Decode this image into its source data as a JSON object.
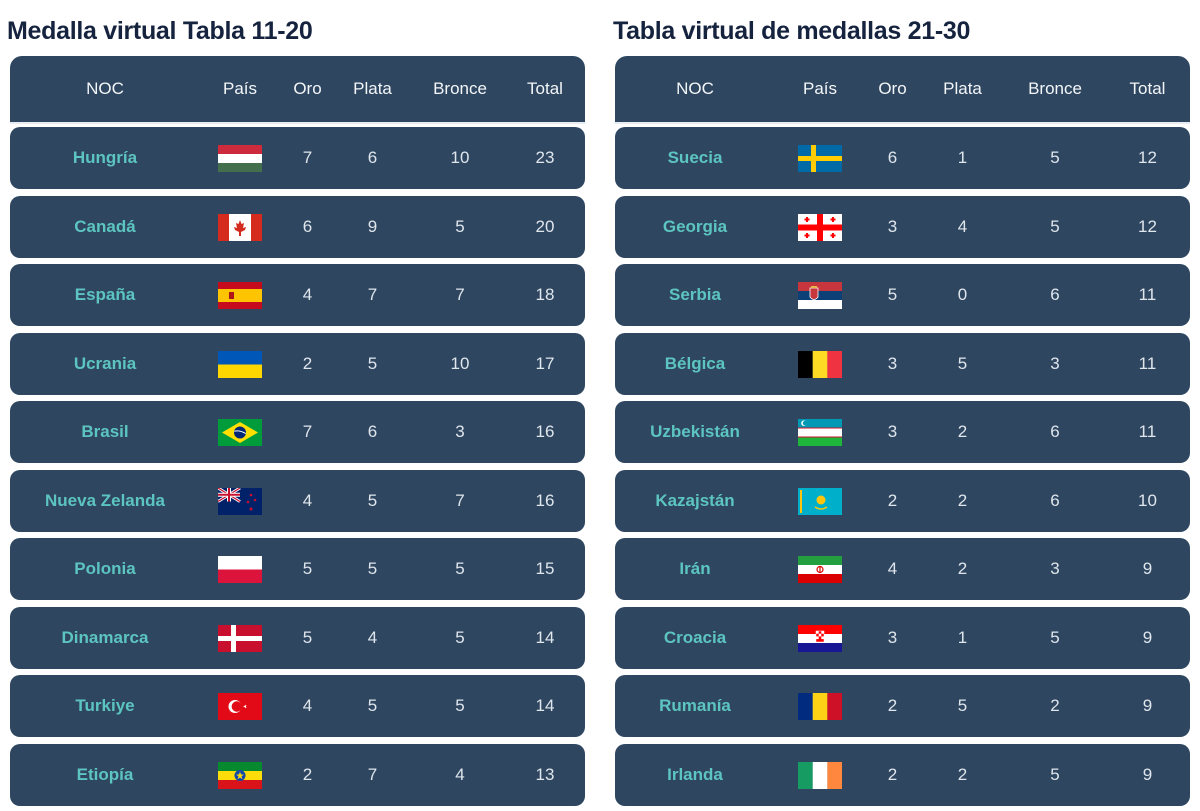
{
  "tables": [
    {
      "title": "Medalla virtual Tabla 11-20",
      "headers": [
        "NOC",
        "País",
        "Oro",
        "Plata",
        "Bronce",
        "Total"
      ],
      "rows": [
        {
          "country": "Hungría",
          "flag": "hungary-flag",
          "gold": "7",
          "silver": "6",
          "bronze": "10",
          "total": "23"
        },
        {
          "country": "Canadá",
          "flag": "canada-flag",
          "gold": "6",
          "silver": "9",
          "bronze": "5",
          "total": "20"
        },
        {
          "country": "España",
          "flag": "spain-flag",
          "gold": "4",
          "silver": "7",
          "bronze": "7",
          "total": "18"
        },
        {
          "country": "Ucrania",
          "flag": "ukraine-flag",
          "gold": "2",
          "silver": "5",
          "bronze": "10",
          "total": "17"
        },
        {
          "country": "Brasil",
          "flag": "brazil-flag",
          "gold": "7",
          "silver": "6",
          "bronze": "3",
          "total": "16"
        },
        {
          "country": "Nueva Zelanda",
          "flag": "new-zealand-flag",
          "gold": "4",
          "silver": "5",
          "bronze": "7",
          "total": "16"
        },
        {
          "country": "Polonia",
          "flag": "poland-flag",
          "gold": "5",
          "silver": "5",
          "bronze": "5",
          "total": "15"
        },
        {
          "country": "Dinamarca",
          "flag": "denmark-flag",
          "gold": "5",
          "silver": "4",
          "bronze": "5",
          "total": "14"
        },
        {
          "country": "Turkiye",
          "flag": "turkey-flag",
          "gold": "4",
          "silver": "5",
          "bronze": "5",
          "total": "14"
        },
        {
          "country": "Etiopía",
          "flag": "ethiopia-flag",
          "gold": "2",
          "silver": "7",
          "bronze": "4",
          "total": "13"
        }
      ]
    },
    {
      "title": "Tabla virtual de medallas 21-30",
      "headers": [
        "NOC",
        "País",
        "Oro",
        "Plata",
        "Bronce",
        "Total"
      ],
      "rows": [
        {
          "country": "Suecia",
          "flag": "sweden-flag",
          "gold": "6",
          "silver": "1",
          "bronze": "5",
          "total": "12"
        },
        {
          "country": "Georgia",
          "flag": "georgia-flag",
          "gold": "3",
          "silver": "4",
          "bronze": "5",
          "total": "12"
        },
        {
          "country": "Serbia",
          "flag": "serbia-flag",
          "gold": "5",
          "silver": "0",
          "bronze": "6",
          "total": "11"
        },
        {
          "country": "Bélgica",
          "flag": "belgium-flag",
          "gold": "3",
          "silver": "5",
          "bronze": "3",
          "total": "11"
        },
        {
          "country": "Uzbekistán",
          "flag": "uzbekistan-flag",
          "gold": "3",
          "silver": "2",
          "bronze": "6",
          "total": "11"
        },
        {
          "country": "Kazajstán",
          "flag": "kazakhstan-flag",
          "gold": "2",
          "silver": "2",
          "bronze": "6",
          "total": "10"
        },
        {
          "country": "Irán",
          "flag": "iran-flag",
          "gold": "4",
          "silver": "2",
          "bronze": "3",
          "total": "9"
        },
        {
          "country": "Croacia",
          "flag": "croatia-flag",
          "gold": "3",
          "silver": "1",
          "bronze": "5",
          "total": "9"
        },
        {
          "country": "Rumanía",
          "flag": "romania-flag",
          "gold": "2",
          "silver": "5",
          "bronze": "2",
          "total": "9"
        },
        {
          "country": "Irlanda",
          "flag": "ireland-flag",
          "gold": "2",
          "silver": "2",
          "bronze": "5",
          "total": "9"
        }
      ]
    }
  ],
  "colors": {
    "row_background": "#2f4660",
    "country_text": "#5cc5c1",
    "number_text": "#dfe6ec",
    "title_text": "#15233e"
  }
}
